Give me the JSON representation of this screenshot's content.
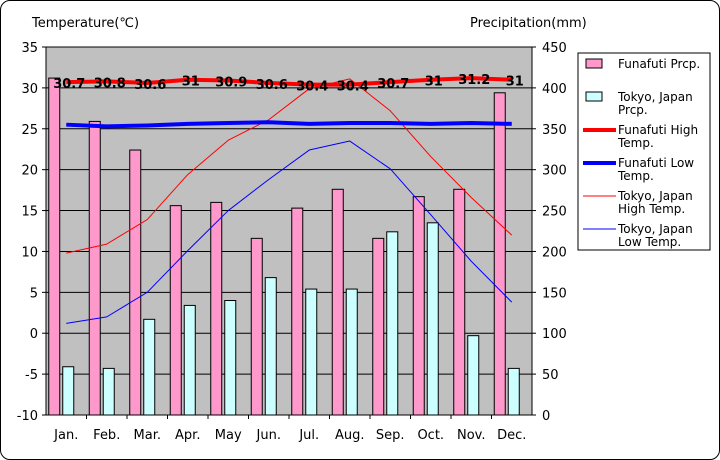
{
  "chart_data": {
    "type": "bar",
    "categories": [
      "Jan.",
      "Feb.",
      "Mar.",
      "Apr.",
      "May",
      "Jun.",
      "Jul.",
      "Aug.",
      "Sep.",
      "Oct.",
      "Nov.",
      "Dec."
    ],
    "left_axis": {
      "title": "Temperature(℃)",
      "ylim": [
        -10,
        35
      ],
      "ticks": [
        -10,
        -5,
        0,
        5,
        10,
        15,
        20,
        25,
        30,
        35
      ]
    },
    "right_axis": {
      "title": "Precipitation(mm)",
      "ylim": [
        0,
        450
      ],
      "ticks": [
        0,
        50,
        100,
        150,
        200,
        250,
        300,
        350,
        400,
        450
      ]
    },
    "grid": true,
    "legend_position": "right",
    "series": [
      {
        "name": "Funafuti Prcp.",
        "kind": "bar",
        "axis": "right",
        "color": "#ff99cc",
        "values": [
          412,
          359,
          324,
          256,
          260,
          216,
          253,
          276,
          216,
          267,
          276,
          394
        ]
      },
      {
        "name": "Tokyo, Japan Prcp.",
        "kind": "bar",
        "axis": "right",
        "color": "#ccffff",
        "values": [
          59,
          57,
          117,
          134,
          140,
          168,
          154,
          154,
          224,
          235,
          97,
          57
        ]
      },
      {
        "name": "Funafuti High Temp.",
        "kind": "line",
        "axis": "left",
        "color": "#ff0000",
        "width": 4,
        "values": [
          30.7,
          30.8,
          30.6,
          31.0,
          30.9,
          30.6,
          30.4,
          30.4,
          30.7,
          31.0,
          31.2,
          31.0
        ],
        "labels": [
          "30.7",
          "30.8",
          "30.6",
          "31",
          "30.9",
          "30.6",
          "30.4",
          "30.4",
          "30.7",
          "31",
          "31.2",
          "31"
        ]
      },
      {
        "name": "Funafuti Low Temp.",
        "kind": "line",
        "axis": "left",
        "color": "#0000ff",
        "width": 4,
        "values": [
          25.5,
          25.3,
          25.4,
          25.6,
          25.7,
          25.8,
          25.6,
          25.7,
          25.7,
          25.6,
          25.7,
          25.6
        ]
      },
      {
        "name": "Tokyo, Japan High Temp.",
        "kind": "line",
        "axis": "left",
        "color": "#ff0000",
        "width": 1,
        "values": [
          9.8,
          10.9,
          13.9,
          19.4,
          23.6,
          26.1,
          29.9,
          31.1,
          27.2,
          21.6,
          16.6,
          12.0
        ]
      },
      {
        "name": "Tokyo, Japan Low Temp.",
        "kind": "line",
        "axis": "left",
        "color": "#0000ff",
        "width": 1,
        "values": [
          1.2,
          2.0,
          5.0,
          10.1,
          15.0,
          18.8,
          22.4,
          23.5,
          20.1,
          14.5,
          8.8,
          3.8
        ]
      }
    ],
    "legend": [
      {
        "series": 0,
        "lines": [
          "Funafuti Prcp."
        ]
      },
      {
        "series": 1,
        "lines": [
          "Tokyo, Japan",
          "Prcp."
        ]
      },
      {
        "series": 2,
        "lines": [
          "Funafuti High",
          "Temp."
        ]
      },
      {
        "series": 3,
        "lines": [
          "Funafuti Low",
          "Temp."
        ]
      },
      {
        "series": 4,
        "lines": [
          "Tokyo, Japan",
          "High Temp."
        ]
      },
      {
        "series": 5,
        "lines": [
          "Tokyo, Japan",
          "Low Temp."
        ]
      }
    ]
  }
}
